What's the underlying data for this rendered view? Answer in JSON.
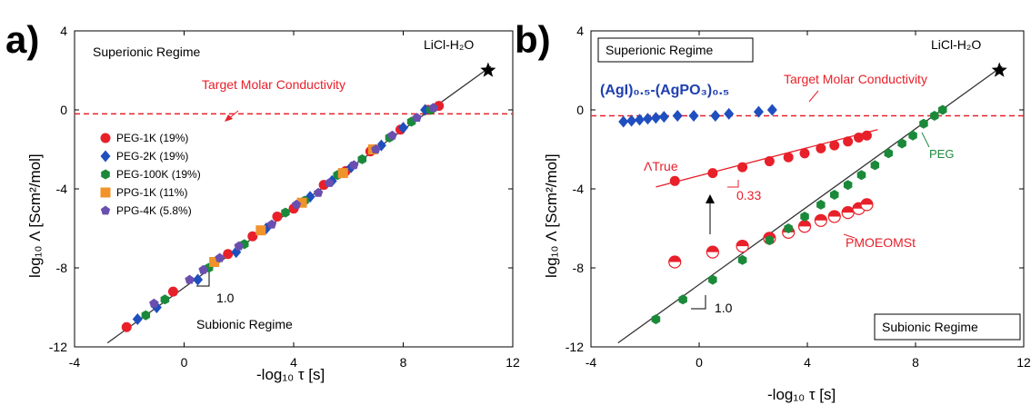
{
  "colors": {
    "red": "#e8202a",
    "blue": "#1f4fbf",
    "green": "#1a8a3a",
    "orange": "#f0932b",
    "purple": "#6a4fb0",
    "dashed": "#e8202a",
    "line": "#333333"
  },
  "chart_data": [
    {
      "panel": "a)",
      "type": "scatter",
      "xlim": [
        -4,
        12
      ],
      "ylim": [
        -12,
        4
      ],
      "xticks": [
        "-4",
        "0",
        "4",
        "8",
        "12"
      ],
      "yticks": [
        "4",
        "0",
        "-4",
        "-8",
        "-12"
      ],
      "xlabel": "-log₁₀ τ [s]",
      "ylabel": "log₁₀ Λ [Scm²/mol]",
      "regions": {
        "top": "Superionic Regime",
        "bottom": "Subionic Regime"
      },
      "target_label": "Target Molar Conductivity",
      "target_y": -0.2,
      "ref_point": {
        "label": "LiCl-H₂O",
        "x": 11.1,
        "y": 2.0
      },
      "slope_label": "1.0",
      "line": {
        "x": [
          -2.8,
          11.2
        ],
        "y": [
          -11.8,
          2.2
        ]
      },
      "legend_position": "left",
      "series": [
        {
          "name": "PEG-1K (19%)",
          "marker": "circle",
          "color": "red",
          "points": [
            [
              -2.1,
              -11.0
            ],
            [
              -0.4,
              -9.2
            ],
            [
              1.6,
              -7.3
            ],
            [
              2.5,
              -6.4
            ],
            [
              3.4,
              -5.4
            ],
            [
              4.0,
              -5.0
            ],
            [
              5.1,
              -3.8
            ],
            [
              5.9,
              -3.1
            ],
            [
              6.8,
              -2.1
            ],
            [
              7.9,
              -1.0
            ],
            [
              8.9,
              0.0
            ],
            [
              9.3,
              0.2
            ]
          ]
        },
        {
          "name": "PEG-2K (19%)",
          "marker": "diamond",
          "color": "blue",
          "points": [
            [
              -1.7,
              -10.6
            ],
            [
              -1.0,
              -10.0
            ],
            [
              0.5,
              -8.6
            ],
            [
              1.9,
              -7.2
            ],
            [
              3.0,
              -6.0
            ],
            [
              4.6,
              -4.4
            ],
            [
              5.4,
              -3.6
            ],
            [
              6.1,
              -2.9
            ],
            [
              7.2,
              -1.8
            ],
            [
              8.0,
              -0.9
            ],
            [
              8.8,
              0.0
            ]
          ]
        },
        {
          "name": "PEG-100K (19%)",
          "marker": "hexagon",
          "color": "green",
          "points": [
            [
              -1.4,
              -10.4
            ],
            [
              -0.7,
              -9.6
            ],
            [
              0.9,
              -8.0
            ],
            [
              2.2,
              -6.8
            ],
            [
              3.7,
              -5.2
            ],
            [
              4.4,
              -4.6
            ],
            [
              5.6,
              -3.3
            ],
            [
              6.5,
              -2.5
            ],
            [
              7.5,
              -1.4
            ],
            [
              8.3,
              -0.6
            ],
            [
              9.0,
              0.0
            ]
          ]
        },
        {
          "name": "PPG-1K (11%)",
          "marker": "square",
          "color": "orange",
          "points": [
            [
              1.1,
              -7.7
            ],
            [
              2.8,
              -6.1
            ],
            [
              4.3,
              -4.7
            ],
            [
              5.8,
              -3.2
            ],
            [
              6.9,
              -2.0
            ]
          ]
        },
        {
          "name": "PPG-4K (5.8%)",
          "marker": "pentagon",
          "color": "purple",
          "points": [
            [
              -1.1,
              -9.8
            ],
            [
              0.2,
              -8.6
            ],
            [
              0.7,
              -8.1
            ],
            [
              1.3,
              -7.5
            ],
            [
              2.0,
              -6.9
            ],
            [
              3.2,
              -5.8
            ],
            [
              4.1,
              -4.8
            ],
            [
              4.9,
              -4.2
            ],
            [
              5.3,
              -3.7
            ],
            [
              6.2,
              -2.8
            ],
            [
              7.0,
              -2.0
            ],
            [
              7.6,
              -1.3
            ],
            [
              8.5,
              -0.4
            ],
            [
              9.1,
              0.1
            ]
          ]
        }
      ]
    },
    {
      "panel": "b)",
      "type": "scatter",
      "xlim": [
        -4,
        12
      ],
      "ylim": [
        -12,
        4
      ],
      "xticks": [
        "-4",
        "0",
        "4",
        "8",
        "12"
      ],
      "yticks": [
        "4",
        "0",
        "-4",
        "-8",
        "-12"
      ],
      "xlabel": "-log₁₀ τ [s]",
      "ylabel": "log₁₀ Λ [Scm²/mol]",
      "regions": {
        "top": "Superionic Regime",
        "bottom": "Subionic Regime"
      },
      "target_label": "Target Molar Conductivity",
      "target_y": -0.3,
      "ref_point": {
        "label": "LiCl-H₂O",
        "x": 11.1,
        "y": 2.0
      },
      "slope_labels": {
        "true": "0.33",
        "peg": "1.0"
      },
      "annotations": {
        "agi": "(AgI)₀.₅-(AgPO₃)₀.₅",
        "true_label": "ΛTrue",
        "peg": "PEG",
        "pmoeomst": "PMOEOMSt"
      },
      "line": {
        "x": [
          -3.0,
          11.2
        ],
        "y": [
          -11.8,
          2.2
        ]
      },
      "true_line": {
        "x": [
          -1.6,
          6.6
        ],
        "y": [
          -3.9,
          -1.0
        ]
      },
      "series": [
        {
          "name": "(AgI)0.5-(AgPO3)0.5",
          "marker": "diamond",
          "color": "blue",
          "points": [
            [
              -2.8,
              -0.6
            ],
            [
              -2.5,
              -0.55
            ],
            [
              -2.2,
              -0.5
            ],
            [
              -1.9,
              -0.45
            ],
            [
              -1.6,
              -0.4
            ],
            [
              -1.3,
              -0.35
            ],
            [
              -0.8,
              -0.3
            ],
            [
              -0.2,
              -0.3
            ],
            [
              0.6,
              -0.3
            ],
            [
              1.1,
              -0.2
            ],
            [
              2.2,
              -0.1
            ],
            [
              2.7,
              0.0
            ]
          ]
        },
        {
          "name": "ΛTrue",
          "marker": "circle",
          "color": "red",
          "points": [
            [
              -0.9,
              -3.6
            ],
            [
              0.5,
              -3.2
            ],
            [
              1.6,
              -2.9
            ],
            [
              2.6,
              -2.6
            ],
            [
              3.3,
              -2.4
            ],
            [
              3.9,
              -2.2
            ],
            [
              4.5,
              -1.95
            ],
            [
              5.0,
              -1.8
            ],
            [
              5.5,
              -1.6
            ],
            [
              5.9,
              -1.4
            ],
            [
              6.2,
              -1.3
            ]
          ]
        },
        {
          "name": "PMOEOMSt",
          "marker": "halfcircle",
          "color": "red",
          "points": [
            [
              -0.9,
              -7.7
            ],
            [
              0.5,
              -7.2
            ],
            [
              1.6,
              -6.9
            ],
            [
              2.6,
              -6.5
            ],
            [
              3.3,
              -6.2
            ],
            [
              3.9,
              -5.9
            ],
            [
              4.5,
              -5.6
            ],
            [
              5.0,
              -5.4
            ],
            [
              5.5,
              -5.2
            ],
            [
              5.9,
              -5.0
            ],
            [
              6.2,
              -4.8
            ]
          ]
        },
        {
          "name": "PEG",
          "marker": "hexagon",
          "color": "green",
          "points": [
            [
              -1.6,
              -10.6
            ],
            [
              -0.6,
              -9.6
            ],
            [
              0.5,
              -8.6
            ],
            [
              1.6,
              -7.6
            ],
            [
              2.6,
              -6.6
            ],
            [
              3.3,
              -6.0
            ],
            [
              3.9,
              -5.4
            ],
            [
              4.5,
              -4.8
            ],
            [
              5.0,
              -4.3
            ],
            [
              5.5,
              -3.8
            ],
            [
              6.0,
              -3.3
            ],
            [
              6.5,
              -2.8
            ],
            [
              7.0,
              -2.2
            ],
            [
              7.5,
              -1.7
            ],
            [
              7.9,
              -1.3
            ],
            [
              8.3,
              -0.7
            ],
            [
              8.7,
              -0.3
            ],
            [
              9.0,
              0.0
            ]
          ]
        }
      ]
    }
  ]
}
